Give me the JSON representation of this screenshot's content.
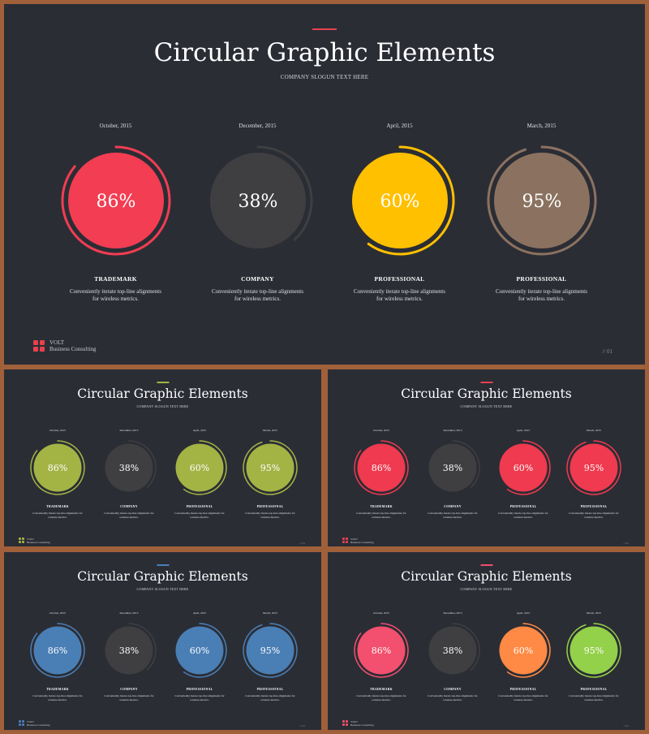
{
  "title": "Circular Graphic Elements",
  "subtitle": "COMPANY SLOGUN TEXT HERE",
  "metrics": [
    {
      "date": "October, 2015",
      "percent_label": "86%",
      "value": 86,
      "category": "TRADEMARK",
      "description": "Conveniently iterate top-line alignments for wireless metrics."
    },
    {
      "date": "December, 2015",
      "percent_label": "38%",
      "value": 38,
      "category": "COMPANY",
      "description": "Conveniently iterate top-line alignments for wireless metrics."
    },
    {
      "date": "April, 2015",
      "percent_label": "60%",
      "value": 60,
      "category": "PROFESSIONAL",
      "description": "Conveniently iterate top-line alignments for wireless metrics."
    },
    {
      "date": "March, 2015",
      "percent_label": "95%",
      "value": 95,
      "category": "PROFESSIONAL",
      "description": "Conveniently iterate top-line alignments for wireless metrics."
    }
  ],
  "logo": {
    "name": "VOLT",
    "tagline": "Business Consulting"
  },
  "page_number": "// 01",
  "slides": [
    {
      "id": "main",
      "accent": "#e8414e",
      "colors": [
        "#f23d52",
        "#3f3f41",
        "#ffc000",
        "#8b7260"
      ],
      "logo_color": "#e8414e"
    },
    {
      "id": "green",
      "accent": "#9fb640",
      "colors": [
        "#a3b445",
        "#3f3f41",
        "#a3b445",
        "#a3b445"
      ],
      "logo_color": "#a3b445"
    },
    {
      "id": "red",
      "accent": "#e8414e",
      "colors": [
        "#ef3a4f",
        "#3f3f41",
        "#ef3a4f",
        "#ef3a4f"
      ],
      "logo_color": "#e8414e"
    },
    {
      "id": "blue",
      "accent": "#4a7fb5",
      "colors": [
        "#4a7fb5",
        "#3f3f41",
        "#4a7fb5",
        "#4a7fb5"
      ],
      "logo_color": "#4a7fb5"
    },
    {
      "id": "multi",
      "accent": "#ef4f6c",
      "colors": [
        "#f2506e",
        "#3f3f41",
        "#ff8a45",
        "#94d14a"
      ],
      "logo_color": "#ef4f6c"
    }
  ]
}
